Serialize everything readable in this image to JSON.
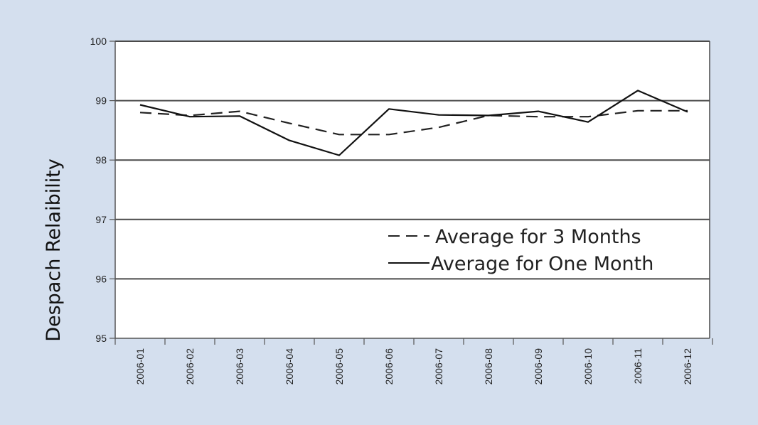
{
  "chart_data": {
    "type": "line",
    "title": "",
    "xlabel": "",
    "ylabel": "Despach Relaibility",
    "ylim": [
      95,
      100
    ],
    "yticks": [
      95,
      96,
      97,
      98,
      99,
      100
    ],
    "categories": [
      "2006-01",
      "2006-02",
      "2006-03",
      "2006-04",
      "2006-05",
      "2006-06",
      "2006-07",
      "2006-08",
      "2006-09",
      "2006-10",
      "2006-11",
      "2006-12"
    ],
    "grid": true,
    "legend_position": "lower-right",
    "series": [
      {
        "name": "Average for 3 Months",
        "style": "dashed",
        "color": "#222222",
        "values": [
          98.8,
          98.75,
          98.82,
          98.62,
          98.43,
          98.43,
          98.55,
          98.75,
          98.73,
          98.73,
          98.83,
          98.83
        ]
      },
      {
        "name": "Average for One Month",
        "style": "solid",
        "color": "#111111",
        "values": [
          98.93,
          98.73,
          98.74,
          98.33,
          98.08,
          98.86,
          98.76,
          98.75,
          98.82,
          98.64,
          99.17,
          98.81
        ]
      }
    ]
  },
  "colors": {
    "frame_background": "#d4dfee",
    "plot_background": "#ffffff",
    "gridline": "#4a4a4a",
    "axis": "#555555"
  }
}
